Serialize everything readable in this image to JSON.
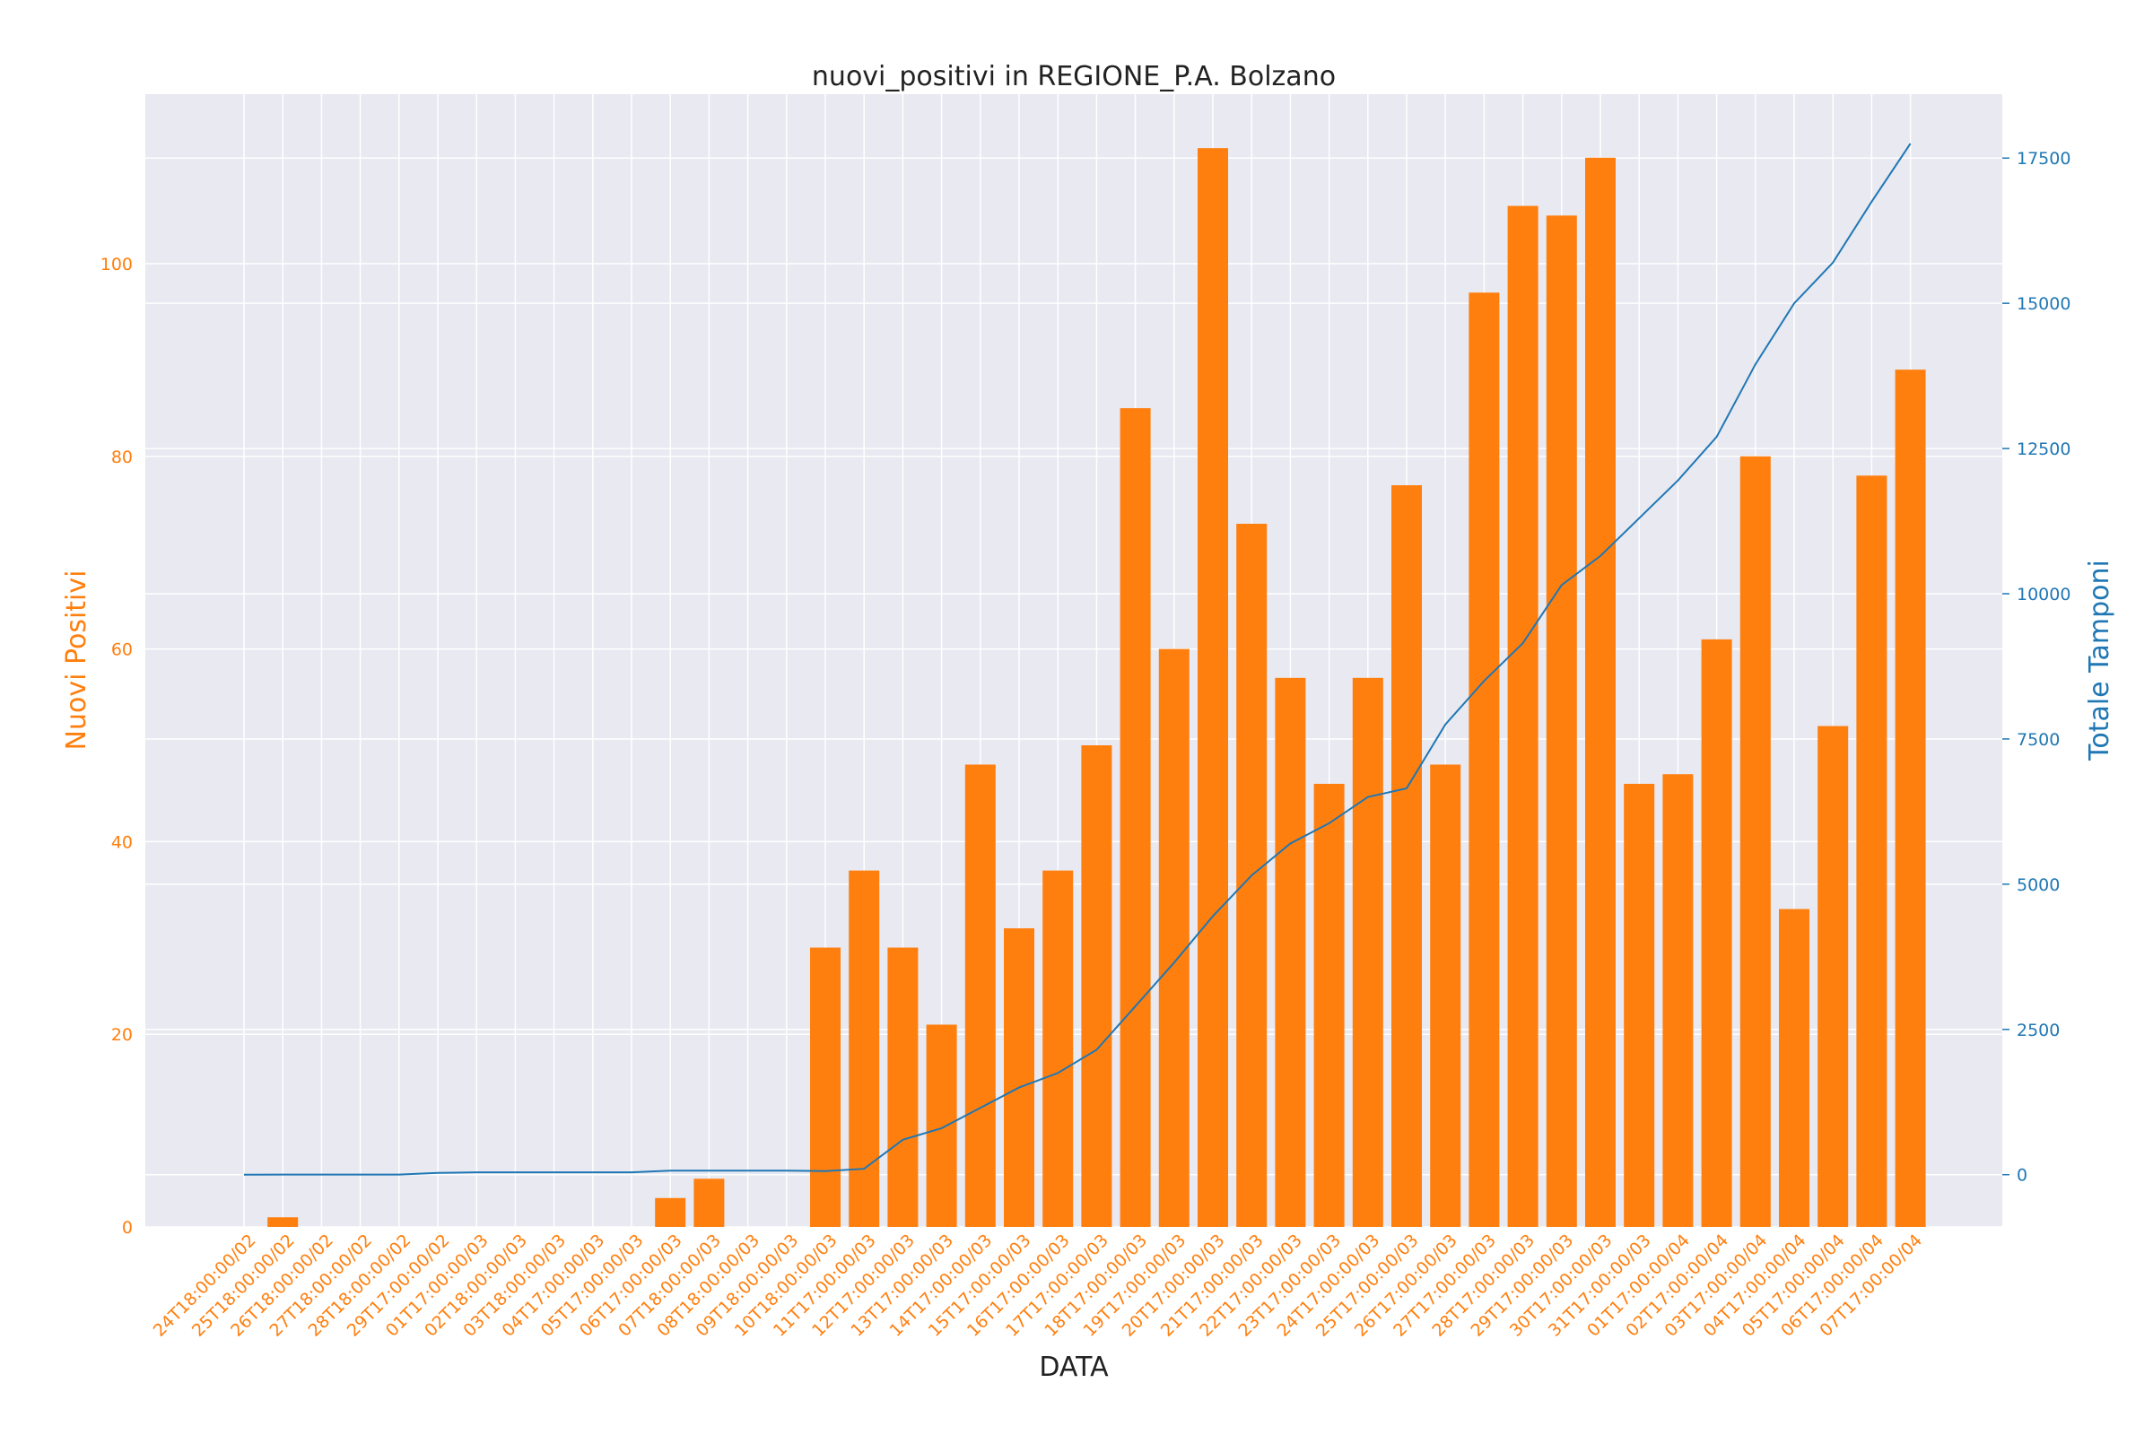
{
  "chart_data": {
    "type": "bar",
    "title": "nuovi_positivi in REGIONE_P.A. Bolzano",
    "xlabel": "DATA",
    "ylabel": "Nuovi Positivi",
    "y2label": "Totale Tamponi",
    "ylim": [
      0,
      117.6
    ],
    "y2lim": [
      -900,
      18600
    ],
    "yticks": [
      0,
      20,
      40,
      60,
      80,
      100
    ],
    "y2ticks": [
      0,
      2500,
      5000,
      7500,
      10000,
      12500,
      15000,
      17500
    ],
    "grid": true,
    "colors": {
      "bars": "#ff7f0e",
      "line": "#1f77b4",
      "plot_bg": "#e8e9f1",
      "grid": "#ffffff"
    },
    "categories": [
      "24T18:00:00/02",
      "25T18:00:00/02",
      "26T18:00:00/02",
      "27T18:00:00/02",
      "28T18:00:00/02",
      "29T17:00:00/02",
      "01T17:00:00/03",
      "02T18:00:00/03",
      "03T18:00:00/03",
      "04T17:00:00/03",
      "05T17:00:00/03",
      "06T17:00:00/03",
      "07T18:00:00/03",
      "08T18:00:00/03",
      "09T18:00:00/03",
      "10T18:00:00/03",
      "11T17:00:00/03",
      "12T17:00:00/03",
      "13T17:00:00/03",
      "14T17:00:00/03",
      "15T17:00:00/03",
      "16T17:00:00/03",
      "17T17:00:00/03",
      "18T17:00:00/03",
      "19T17:00:00/03",
      "20T17:00:00/03",
      "21T17:00:00/03",
      "22T17:00:00/03",
      "23T17:00:00/03",
      "24T17:00:00/03",
      "25T17:00:00/03",
      "26T17:00:00/03",
      "27T17:00:00/03",
      "28T17:00:00/03",
      "29T17:00:00/03",
      "30T17:00:00/03",
      "31T17:00:00/03",
      "01T17:00:00/04",
      "02T17:00:00/04",
      "03T17:00:00/04",
      "04T17:00:00/04",
      "05T17:00:00/04",
      "06T17:00:00/04",
      "07T17:00:00/04"
    ],
    "series": [
      {
        "name": "Nuovi Positivi",
        "type": "bar",
        "axis": "left",
        "values": [
          0,
          1,
          0,
          0,
          0,
          0,
          0,
          0,
          0,
          0,
          0,
          3,
          5,
          0,
          0,
          29,
          37,
          29,
          21,
          48,
          31,
          37,
          50,
          85,
          60,
          112,
          73,
          57,
          46,
          57,
          77,
          48,
          97,
          106,
          105,
          111,
          46,
          47,
          61,
          80,
          33,
          52,
          78,
          89
        ]
      },
      {
        "name": "Totale Tamponi",
        "type": "line",
        "axis": "right",
        "values": [
          0,
          1,
          1,
          1,
          2,
          30,
          40,
          40,
          40,
          40,
          40,
          70,
          70,
          70,
          70,
          60,
          100,
          600,
          800,
          1150,
          1500,
          1750,
          2150,
          2900,
          3650,
          4450,
          5150,
          5700,
          6050,
          6500,
          6650,
          7750,
          8500,
          9150,
          10150,
          10650,
          11300,
          11950,
          12700,
          13950,
          15000,
          15700,
          16750,
          17750
        ]
      }
    ]
  }
}
